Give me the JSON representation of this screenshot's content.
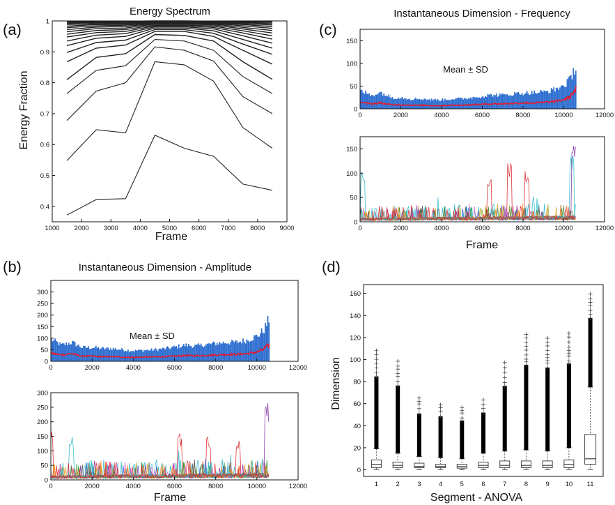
{
  "panels": {
    "a": {
      "label": "(a)",
      "title": "Energy Spectrum"
    },
    "b": {
      "label": "(b)",
      "title": "Instantaneous Dimension - Amplitude"
    },
    "c": {
      "label": "(c)",
      "title": "Instantaneous Dimension - Frequency"
    },
    "d": {
      "label": "(d)"
    }
  },
  "colors": {
    "mean_sd_fill": "#2f6fd0",
    "mean_line": "#e8182a",
    "axis": "#111111",
    "multi": [
      "#27b8c8",
      "#d61f26",
      "#7b2a9e",
      "#2e8b2e",
      "#e0a020",
      "#1f4fd0",
      "#a0a020",
      "#e060c0",
      "#555555",
      "#ff7f0e"
    ]
  },
  "chart_data": [
    {
      "id": "a",
      "type": "line",
      "title": "Energy Spectrum",
      "xlabel": "Frame",
      "ylabel": "Energy Fraction",
      "xlim": [
        1000,
        9000
      ],
      "ylim": [
        0.35,
        1.0
      ],
      "xticks": [
        1000,
        2000,
        3000,
        4000,
        5000,
        6000,
        7000,
        8000,
        9000
      ],
      "yticks": [
        0.4,
        0.5,
        0.6,
        0.7,
        0.8,
        0.9,
        1
      ],
      "x": [
        1500,
        2500,
        3500,
        4500,
        5500,
        6500,
        7500,
        8500
      ],
      "series": [
        {
          "values": [
            0.372,
            0.422,
            0.425,
            0.63,
            0.588,
            0.562,
            0.472,
            0.452
          ]
        },
        {
          "values": [
            0.548,
            0.648,
            0.638,
            0.868,
            0.858,
            0.805,
            0.655,
            0.588
          ]
        },
        {
          "values": [
            0.678,
            0.773,
            0.8,
            0.916,
            0.905,
            0.87,
            0.755,
            0.7
          ]
        },
        {
          "values": [
            0.765,
            0.84,
            0.855,
            0.94,
            0.935,
            0.905,
            0.82,
            0.765
          ]
        },
        {
          "values": [
            0.81,
            0.882,
            0.894,
            0.956,
            0.953,
            0.935,
            0.868,
            0.811
          ]
        },
        {
          "values": [
            0.868,
            0.912,
            0.922,
            0.966,
            0.966,
            0.95,
            0.905,
            0.86
          ]
        },
        {
          "values": [
            0.898,
            0.93,
            0.938,
            0.972,
            0.972,
            0.96,
            0.925,
            0.892
          ]
        },
        {
          "values": [
            0.92,
            0.944,
            0.95,
            0.977,
            0.977,
            0.968,
            0.94,
            0.912
          ]
        },
        {
          "values": [
            0.935,
            0.954,
            0.959,
            0.981,
            0.981,
            0.974,
            0.952,
            0.928
          ]
        },
        {
          "values": [
            0.948,
            0.962,
            0.966,
            0.984,
            0.984,
            0.979,
            0.961,
            0.941
          ]
        },
        {
          "values": [
            0.957,
            0.969,
            0.972,
            0.987,
            0.987,
            0.983,
            0.968,
            0.952
          ]
        },
        {
          "values": [
            0.965,
            0.975,
            0.977,
            0.99,
            0.99,
            0.987,
            0.974,
            0.961
          ]
        },
        {
          "values": [
            0.972,
            0.98,
            0.982,
            0.992,
            0.992,
            0.99,
            0.979,
            0.969
          ]
        },
        {
          "values": [
            0.978,
            0.984,
            0.986,
            0.994,
            0.994,
            0.992,
            0.984,
            0.976
          ]
        },
        {
          "values": [
            0.983,
            0.988,
            0.989,
            0.996,
            0.996,
            0.994,
            0.988,
            0.982
          ]
        },
        {
          "values": [
            0.988,
            0.991,
            0.992,
            0.997,
            0.997,
            0.996,
            0.991,
            0.987
          ]
        },
        {
          "values": [
            0.992,
            0.994,
            0.995,
            0.998,
            0.998,
            0.997,
            0.994,
            0.991
          ]
        },
        {
          "values": [
            0.995,
            0.996,
            0.997,
            0.999,
            0.999,
            0.998,
            0.996,
            0.995
          ]
        },
        {
          "values": [
            0.998,
            0.998,
            0.999,
            1.0,
            1.0,
            0.999,
            0.998,
            0.998
          ]
        }
      ]
    },
    {
      "id": "b-top",
      "type": "area",
      "annotation": "Mean ± SD",
      "xlim": [
        0,
        12000
      ],
      "ylim": [
        0,
        350
      ],
      "xticks": [
        0,
        2000,
        4000,
        6000,
        8000,
        10000,
        12000
      ],
      "yticks": [
        0,
        50,
        100,
        150,
        200,
        250,
        300
      ],
      "x": [
        0,
        500,
        1000,
        1500,
        2000,
        2500,
        3000,
        3500,
        4000,
        4500,
        5000,
        5500,
        6000,
        6500,
        7000,
        7500,
        8000,
        8500,
        9000,
        9500,
        10000,
        10300,
        10600
      ],
      "mean": [
        35,
        28,
        33,
        22,
        22,
        20,
        20,
        18,
        17,
        18,
        19,
        20,
        22,
        25,
        24,
        26,
        28,
        30,
        30,
        33,
        40,
        50,
        72
      ],
      "upper": [
        95,
        70,
        82,
        60,
        60,
        55,
        55,
        50,
        46,
        48,
        50,
        55,
        62,
        70,
        66,
        72,
        78,
        82,
        82,
        92,
        110,
        135,
        190
      ]
    },
    {
      "id": "b-bottom",
      "type": "line",
      "xlabel": "Frame",
      "xlim": [
        0,
        12000
      ],
      "ylim": [
        0,
        300
      ],
      "xticks": [
        0,
        2000,
        4000,
        6000,
        8000,
        10000,
        12000
      ],
      "yticks": [
        0,
        50,
        100,
        150,
        200,
        250,
        300
      ],
      "series_count": 12,
      "x_end": 10600,
      "peaks": [
        [
          0,
          180,
          1
        ],
        [
          6250,
          160,
          1
        ],
        [
          7650,
          150,
          1
        ],
        [
          9100,
          150,
          1
        ],
        [
          10500,
          285,
          2
        ],
        [
          1000,
          170,
          0
        ]
      ]
    },
    {
      "id": "c-top",
      "type": "area",
      "title": "Instantaneous Dimension - Frequency",
      "annotation": "Mean ± SD",
      "xlim": [
        0,
        12000
      ],
      "ylim": [
        0,
        175
      ],
      "xticks": [
        0,
        2000,
        4000,
        6000,
        8000,
        10000,
        12000
      ],
      "yticks": [
        0,
        50,
        100,
        150
      ],
      "x": [
        0,
        500,
        1000,
        1500,
        2000,
        2500,
        3000,
        3500,
        4000,
        4500,
        5000,
        5500,
        6000,
        6500,
        7000,
        7500,
        8000,
        8500,
        9000,
        9500,
        10000,
        10300,
        10600
      ],
      "mean": [
        14,
        11,
        13,
        9,
        9,
        8,
        8,
        7,
        7,
        8,
        8,
        9,
        10,
        11,
        11,
        12,
        13,
        13,
        14,
        16,
        20,
        26,
        45
      ],
      "upper": [
        40,
        30,
        36,
        25,
        25,
        22,
        22,
        20,
        20,
        22,
        22,
        25,
        28,
        31,
        30,
        33,
        35,
        36,
        37,
        42,
        52,
        65,
        100
      ]
    },
    {
      "id": "c-bottom",
      "type": "line",
      "xlabel": "Frame",
      "xlim": [
        0,
        12000
      ],
      "ylim": [
        0,
        175
      ],
      "xticks": [
        0,
        2000,
        4000,
        6000,
        8000,
        10000,
        12000
      ],
      "yticks": [
        0,
        50,
        100,
        150
      ],
      "series_count": 12,
      "x_end": 10600,
      "peaks": [
        [
          150,
          110,
          0
        ],
        [
          6350,
          95,
          1
        ],
        [
          7350,
          125,
          1
        ],
        [
          8200,
          105,
          1
        ],
        [
          10500,
          160,
          2
        ],
        [
          10400,
          140,
          0
        ]
      ]
    },
    {
      "id": "d",
      "type": "box",
      "xlabel": "Segment - ANOVA",
      "ylabel": "Dimension",
      "xlim": [
        0.4,
        11.6
      ],
      "ylim": [
        -6,
        168
      ],
      "categories": [
        "1",
        "2",
        "3",
        "4",
        "5",
        "6",
        "7",
        "8",
        "9",
        "10",
        "11"
      ],
      "yticks": [
        0,
        20,
        40,
        60,
        80,
        100,
        120,
        140,
        160
      ],
      "boxes": [
        {
          "q1": 2,
          "median": 5,
          "q3": 9,
          "lower": 0,
          "upper": 19,
          "outlier_max": 110
        },
        {
          "q1": 2,
          "median": 4,
          "q3": 7,
          "lower": 0,
          "upper": 15,
          "outlier_max": 100
        },
        {
          "q1": 2,
          "median": 3,
          "q3": 6,
          "lower": 0,
          "upper": 12,
          "outlier_max": 66
        },
        {
          "q1": 2,
          "median": 3,
          "q3": 5,
          "lower": 0,
          "upper": 11,
          "outlier_max": 63
        },
        {
          "q1": 1.5,
          "median": 3,
          "q3": 5,
          "lower": 0,
          "upper": 10,
          "outlier_max": 58
        },
        {
          "q1": 2,
          "median": 4,
          "q3": 7,
          "lower": 0,
          "upper": 15,
          "outlier_max": 66
        },
        {
          "q1": 2,
          "median": 4,
          "q3": 8,
          "lower": 0,
          "upper": 17,
          "outlier_max": 99
        },
        {
          "q1": 2,
          "median": 4,
          "q3": 8,
          "lower": 0,
          "upper": 18,
          "outlier_max": 125
        },
        {
          "q1": 2,
          "median": 4,
          "q3": 8,
          "lower": 0,
          "upper": 17,
          "outlier_max": 122
        },
        {
          "q1": 2,
          "median": 5,
          "q3": 9,
          "lower": 0,
          "upper": 20,
          "outlier_max": 126
        },
        {
          "q1": 5,
          "median": 10,
          "q3": 32,
          "lower": 0,
          "upper": 75,
          "outlier_max": 162
        }
      ]
    }
  ]
}
